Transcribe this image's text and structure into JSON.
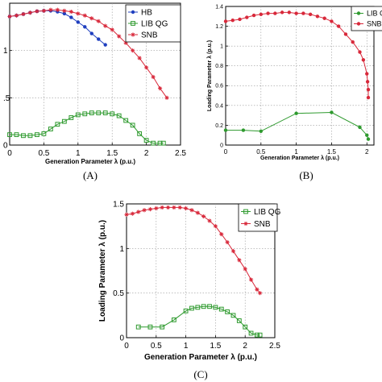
{
  "chart_data": [
    {
      "type": "line",
      "panel_label": "(A)",
      "xlabel": "Generation Parameter λ (p.u.)",
      "ylabel": "",
      "xlim": [
        0,
        2.5
      ],
      "ylim": [
        0,
        1.5
      ],
      "x_ticks": [
        "0",
        "0.5",
        "1",
        "1.5",
        "2",
        "2.5"
      ],
      "y_ticks": [
        "0",
        ".5",
        "1",
        ""
      ],
      "grid": true,
      "legend_position": "top-right",
      "series": [
        {
          "name": "HB",
          "color": "#1f3fbf",
          "marker": "dot",
          "x": [
            0,
            0.1,
            0.2,
            0.3,
            0.4,
            0.5,
            0.6,
            0.7,
            0.8,
            0.9,
            1.0,
            1.1,
            1.2,
            1.3,
            1.4
          ],
          "y": [
            1.36,
            1.37,
            1.385,
            1.4,
            1.415,
            1.42,
            1.42,
            1.41,
            1.39,
            1.35,
            1.3,
            1.25,
            1.18,
            1.12,
            1.06
          ]
        },
        {
          "name": "LIB QG",
          "color": "#2e9a2e",
          "marker": "square",
          "x": [
            0,
            0.1,
            0.2,
            0.3,
            0.4,
            0.5,
            0.6,
            0.7,
            0.8,
            0.9,
            1.0,
            1.1,
            1.2,
            1.3,
            1.4,
            1.5,
            1.6,
            1.7,
            1.8,
            1.9,
            2.0,
            2.1,
            2.2,
            2.25
          ],
          "y": [
            0.11,
            0.11,
            0.1,
            0.1,
            0.11,
            0.12,
            0.17,
            0.22,
            0.25,
            0.29,
            0.32,
            0.33,
            0.34,
            0.34,
            0.34,
            0.33,
            0.31,
            0.26,
            0.21,
            0.12,
            0.05,
            0.02,
            0.02,
            0.02
          ]
        },
        {
          "name": "SNB",
          "color": "#d8283a",
          "marker": "star",
          "x": [
            0,
            0.1,
            0.2,
            0.3,
            0.4,
            0.5,
            0.6,
            0.7,
            0.8,
            0.9,
            1.0,
            1.1,
            1.2,
            1.3,
            1.4,
            1.5,
            1.6,
            1.7,
            1.8,
            1.9,
            2.0,
            2.1,
            2.2,
            2.3
          ],
          "y": [
            1.36,
            1.37,
            1.385,
            1.4,
            1.415,
            1.42,
            1.43,
            1.43,
            1.42,
            1.41,
            1.39,
            1.37,
            1.34,
            1.31,
            1.26,
            1.22,
            1.15,
            1.08,
            1.0,
            0.92,
            0.82,
            0.72,
            0.6,
            0.5
          ]
        }
      ]
    },
    {
      "type": "line",
      "panel_label": "(B)",
      "xlabel": "Generation Parameter λ (p.u.)",
      "ylabel": "Loading Parameter λ (p.u.)",
      "xlim": [
        0,
        2.1
      ],
      "ylim": [
        0,
        1.4
      ],
      "x_ticks": [
        "0",
        "0.5",
        "1",
        "1.5",
        "2"
      ],
      "y_ticks": [
        "0",
        "0.2",
        "0.4",
        "0.6",
        "0.8",
        "1",
        "1.2",
        "1.4"
      ],
      "grid": true,
      "legend_position": "top-right",
      "series": [
        {
          "name": "LIB C",
          "color": "#2e9a2e",
          "marker": "dot",
          "x": [
            0,
            0.25,
            0.5,
            1.0,
            1.5,
            1.9,
            2.0,
            2.02
          ],
          "y": [
            0.15,
            0.15,
            0.14,
            0.32,
            0.33,
            0.18,
            0.1,
            0.06
          ]
        },
        {
          "name": "SNB",
          "color": "#d8283a",
          "marker": "dot",
          "x": [
            0,
            0.1,
            0.2,
            0.3,
            0.4,
            0.5,
            0.6,
            0.7,
            0.8,
            0.9,
            1.0,
            1.1,
            1.2,
            1.3,
            1.4,
            1.5,
            1.6,
            1.7,
            1.8,
            1.9,
            1.95,
            2.0,
            2.01,
            2.02,
            2.02
          ],
          "y": [
            1.25,
            1.26,
            1.27,
            1.29,
            1.31,
            1.32,
            1.33,
            1.33,
            1.34,
            1.34,
            1.33,
            1.33,
            1.32,
            1.3,
            1.28,
            1.25,
            1.2,
            1.12,
            1.04,
            0.94,
            0.86,
            0.72,
            0.64,
            0.56,
            0.48
          ]
        }
      ]
    },
    {
      "type": "line",
      "panel_label": "(C)",
      "xlabel": "Generation Parameter λ (p.u.)",
      "ylabel": "Loading Parameter λ (p.u.)",
      "xlim": [
        0,
        2.5
      ],
      "ylim": [
        0,
        1.5
      ],
      "x_ticks": [
        "0",
        "0.5",
        "1",
        "1.5",
        "2",
        "2.5"
      ],
      "y_ticks": [
        "0",
        "0.5",
        "1",
        "1.5"
      ],
      "grid": true,
      "legend_position": "top-right",
      "series": [
        {
          "name": "LIB QG",
          "color": "#2e9a2e",
          "marker": "square",
          "x": [
            0.2,
            0.4,
            0.6,
            0.8,
            1.0,
            1.1,
            1.2,
            1.3,
            1.4,
            1.5,
            1.6,
            1.7,
            1.8,
            1.9,
            2.0,
            2.1,
            2.2,
            2.25
          ],
          "y": [
            0.12,
            0.12,
            0.12,
            0.2,
            0.3,
            0.33,
            0.34,
            0.35,
            0.35,
            0.34,
            0.32,
            0.29,
            0.25,
            0.19,
            0.12,
            0.05,
            0.03,
            0.03
          ]
        },
        {
          "name": "SNB",
          "color": "#d8283a",
          "marker": "star",
          "x": [
            0,
            0.1,
            0.2,
            0.3,
            0.4,
            0.5,
            0.6,
            0.7,
            0.8,
            0.9,
            1.0,
            1.1,
            1.2,
            1.3,
            1.4,
            1.5,
            1.6,
            1.7,
            1.8,
            1.9,
            2.0,
            2.1,
            2.2,
            2.25
          ],
          "y": [
            1.38,
            1.39,
            1.41,
            1.43,
            1.44,
            1.45,
            1.46,
            1.46,
            1.46,
            1.46,
            1.45,
            1.43,
            1.4,
            1.36,
            1.31,
            1.25,
            1.16,
            1.07,
            0.97,
            0.87,
            0.77,
            0.65,
            0.54,
            0.5
          ]
        }
      ]
    }
  ]
}
